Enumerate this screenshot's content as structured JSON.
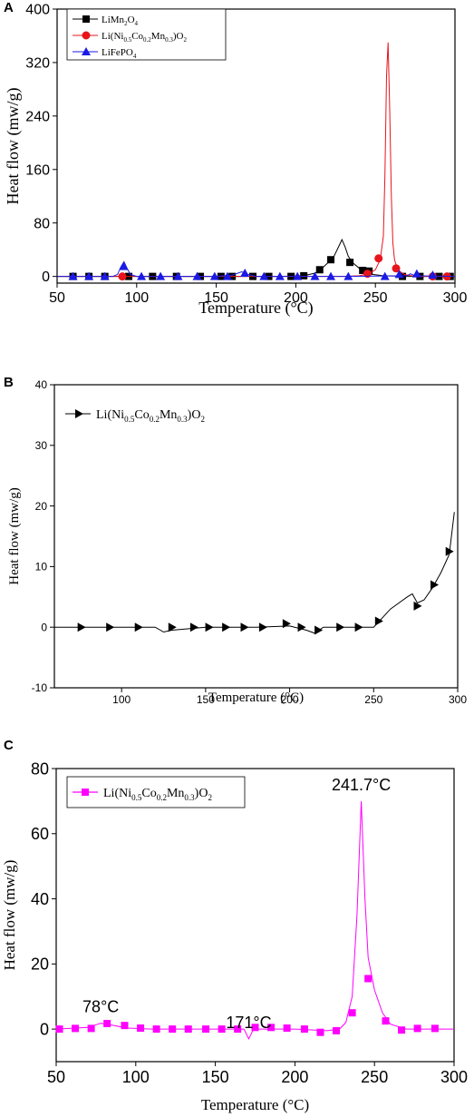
{
  "chart_data": [
    {
      "panel": "A",
      "type": "line",
      "xlabel": "Temperature (°C)",
      "ylabel": "Heat flow (mw/g)",
      "xlim": [
        50,
        300
      ],
      "ylim": [
        -10,
        400
      ],
      "xticks": [
        50,
        100,
        150,
        200,
        250,
        300
      ],
      "yticks": [
        0,
        80,
        160,
        240,
        320,
        400
      ],
      "legend_placement": "top-left",
      "series": [
        {
          "name": "LiMn2O4",
          "color": "#000000",
          "marker": "square",
          "x": [
            50,
            70,
            90,
            110,
            130,
            150,
            170,
            190,
            205,
            212,
            216,
            220,
            224,
            227,
            229,
            231,
            233,
            236,
            240,
            244,
            248,
            255,
            270,
            285,
            300
          ],
          "y": [
            0,
            0,
            0,
            0,
            0,
            0,
            0,
            0,
            1,
            5,
            11,
            20,
            30,
            45,
            55,
            44,
            30,
            20,
            12,
            7,
            3,
            1,
            0,
            0,
            0
          ],
          "markers_x": [
            60,
            70,
            80,
            95,
            110,
            125,
            140,
            153,
            160,
            173,
            183,
            197,
            205,
            215,
            222,
            234,
            242,
            246,
            267,
            278,
            290,
            297
          ],
          "markers_y": [
            0,
            0,
            0,
            0,
            0,
            0,
            0,
            0,
            0,
            0,
            0,
            0,
            1,
            10,
            25,
            21,
            9,
            8,
            0,
            0,
            0,
            0
          ]
        },
        {
          "name": "Li(Ni0.5Co0.2Mn0.3)O2",
          "color": "#e8141b",
          "marker": "circle",
          "x": [
            50,
            100,
            150,
            200,
            230,
            240,
            246,
            250,
            253,
            255,
            256,
            257,
            258,
            259,
            260,
            261,
            262,
            264,
            268,
            275,
            300
          ],
          "y": [
            0,
            0,
            0,
            0,
            0,
            1,
            4,
            10,
            25,
            60,
            150,
            300,
            350,
            250,
            120,
            50,
            25,
            10,
            3,
            0,
            0
          ],
          "markers_x": [
            91,
            245,
            252,
            263,
            286,
            295
          ],
          "markers_y": [
            0,
            4,
            27,
            12,
            0,
            0
          ]
        },
        {
          "name": "LiFePO4",
          "color": "#1a1ae6",
          "marker": "triangle",
          "x": [
            50,
            85,
            88,
            90,
            92,
            94,
            96,
            100,
            150,
            160,
            166,
            170,
            175,
            200,
            230,
            270,
            272,
            275,
            300
          ],
          "y": [
            0,
            0,
            3,
            14,
            22,
            12,
            3,
            0,
            0,
            2,
            7,
            3,
            0,
            0,
            0,
            1,
            4,
            1,
            0
          ],
          "markers_x": [
            60,
            70,
            80,
            92,
            103,
            115,
            126,
            138,
            149,
            157,
            168,
            180,
            190,
            201,
            212,
            222,
            233,
            256,
            265,
            276,
            286
          ],
          "markers_y": [
            0,
            0,
            0,
            15,
            0,
            0,
            0,
            0,
            0,
            0,
            5,
            0,
            0,
            0,
            0,
            0,
            0,
            0,
            3,
            4,
            2
          ]
        }
      ]
    },
    {
      "panel": "B",
      "type": "line",
      "xlabel": "Temperature (°C)",
      "ylabel": "Heat flow (mw/g)",
      "xlim": [
        60,
        300
      ],
      "ylim": [
        -10,
        40
      ],
      "xticks": [
        100,
        150,
        200,
        250,
        300
      ],
      "yticks": [
        -10,
        0,
        10,
        20,
        30,
        40
      ],
      "legend_placement": "top-left",
      "series": [
        {
          "name": "Li(Ni0.5Co0.2Mn0.3)O2",
          "color": "#000000",
          "marker": "triangle-right",
          "x": [
            60,
            80,
            100,
            120,
            125,
            130,
            150,
            180,
            200,
            210,
            215,
            220,
            240,
            250,
            255,
            260,
            265,
            270,
            273,
            276,
            280,
            285,
            290,
            295,
            298
          ],
          "y": [
            0,
            0,
            0,
            0,
            -0.8,
            -0.5,
            0,
            0,
            0.2,
            -0.5,
            -1,
            0,
            0,
            0,
            1.5,
            3,
            4,
            5,
            5.5,
            4,
            4.5,
            6.5,
            9,
            12,
            19
          ],
          "markers_x": [
            76,
            93,
            110,
            130,
            143,
            152,
            162,
            173,
            184,
            198,
            207,
            217,
            230,
            241,
            253,
            276,
            286,
            295
          ],
          "markers_y": [
            0,
            0,
            0,
            0,
            0,
            0,
            0,
            0,
            0,
            0.6,
            0,
            -0.5,
            0,
            0,
            1,
            3.5,
            7,
            12.5
          ]
        }
      ]
    },
    {
      "panel": "C",
      "type": "line",
      "xlabel": "Temperature (°C)",
      "ylabel": "Heat flow (mw/g)",
      "xlim": [
        50,
        300
      ],
      "ylim": [
        -10,
        80
      ],
      "xticks": [
        50,
        100,
        150,
        200,
        250,
        300
      ],
      "yticks": [
        0,
        20,
        40,
        60,
        80
      ],
      "legend_placement": "top-left",
      "annotations": [
        {
          "text": "241.7°C",
          "x": 241.7,
          "y": 70
        },
        {
          "text": "78°C",
          "x": 78,
          "y": 1.8
        },
        {
          "text": "171°C",
          "x": 171,
          "y": -3
        }
      ],
      "series": [
        {
          "name": "Li(Ni0.5Co0.2Mn0.3)O2",
          "color": "#ff00ff",
          "marker": "square",
          "x": [
            50,
            70,
            78,
            85,
            95,
            110,
            150,
            168,
            171,
            174,
            200,
            220,
            228,
            232,
            236,
            239,
            241.7,
            244,
            246,
            250,
            255,
            260,
            270,
            300
          ],
          "y": [
            0,
            0.5,
            1.8,
            1.2,
            0.3,
            0,
            0,
            0,
            -3,
            0,
            0,
            -0.5,
            0,
            2,
            10,
            35,
            70,
            40,
            22,
            12,
            5,
            1.5,
            0,
            0
          ],
          "markers_x": [
            52,
            62,
            72,
            82,
            93,
            103,
            113,
            123,
            133,
            144,
            154,
            164,
            175,
            185,
            195,
            206,
            216,
            226,
            236,
            246,
            257,
            267,
            277,
            288
          ],
          "markers_y": [
            0,
            0.2,
            0.2,
            1.7,
            1.1,
            0.3,
            0,
            0,
            0,
            0,
            0,
            0,
            0.5,
            0.5,
            0.3,
            0,
            -1,
            -0.5,
            5,
            15.5,
            2.5,
            -0.3,
            0.2,
            0.2
          ]
        }
      ]
    }
  ],
  "panels": [
    {
      "id": "A",
      "label": "A",
      "legend": [
        {
          "base": "LiMn",
          "sub1": "2",
          "mid": "O",
          "sub2": "4"
        },
        {
          "text": "Li(Ni",
          "s1": "0.5",
          "t2": "Co",
          "s2": "0.2",
          "t3": "Mn",
          "s3": "0.3",
          "t4": ")O",
          "s4": "2"
        },
        {
          "base": "LiFePO",
          "sub1": "4"
        }
      ]
    },
    {
      "id": "B",
      "label": "B"
    },
    {
      "id": "C",
      "label": "C"
    }
  ]
}
